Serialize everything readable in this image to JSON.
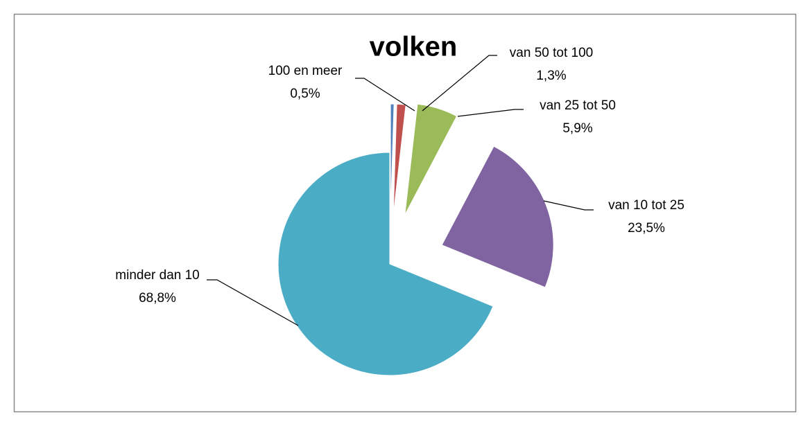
{
  "chart_data": {
    "type": "pie",
    "title": "volken",
    "categories": [
      "100 en meer",
      "van 50 tot 100",
      "van 25 tot 50",
      "van 10 tot 25",
      "minder dan 10"
    ],
    "values": [
      0.5,
      1.3,
      5.9,
      23.5,
      68.8
    ],
    "value_labels": [
      "0,5%",
      "1,3%",
      "5,9%",
      "23,5%",
      "68,8%"
    ],
    "colors": [
      "#4f81bd",
      "#c0504d",
      "#9bbb59",
      "#8064a2",
      "#4bacc6"
    ]
  }
}
